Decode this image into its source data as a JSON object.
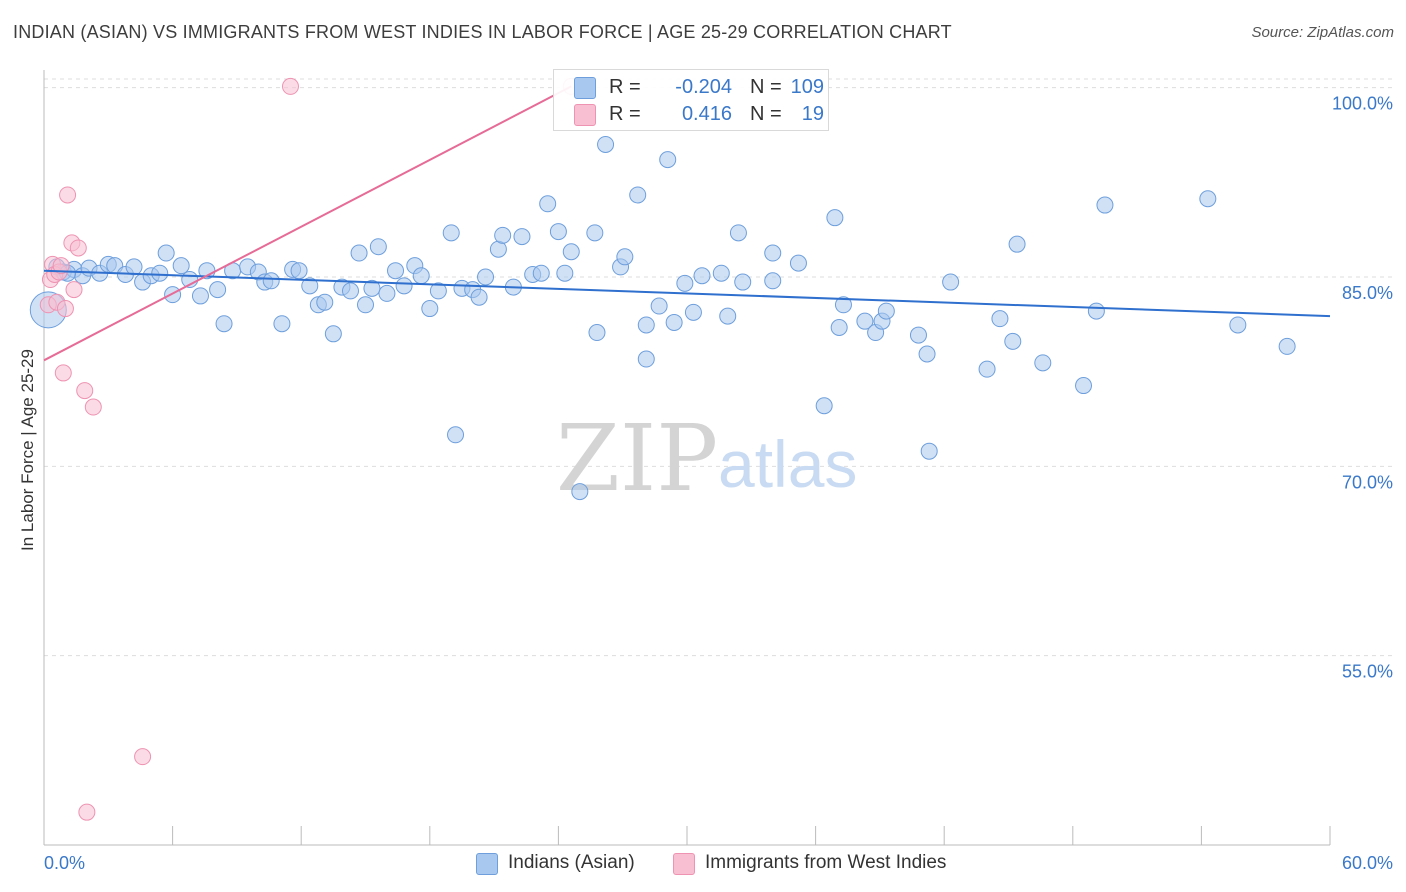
{
  "title": "INDIAN (ASIAN) VS IMMIGRANTS FROM WEST INDIES IN LABOR FORCE | AGE 25-29 CORRELATION CHART",
  "source": "Source: ZipAtlas.com",
  "watermark": {
    "zip": "ZIP",
    "atlas": "atlas"
  },
  "legend": {
    "rows": [
      {
        "r_label": "R =",
        "r_value": "-0.204",
        "n_label": "N =",
        "n_value": "109"
      },
      {
        "r_label": "R =",
        "r_value": "0.416",
        "n_label": "N =",
        "n_value": "19"
      }
    ]
  },
  "bottom_legend": [
    "Indians (Asian)",
    "Immigrants from West Indies"
  ],
  "colors": {
    "blue_fill": "#a9c8ef",
    "blue_stroke": "#6e9fdc",
    "blue_line": "#2f6fce",
    "pink_fill": "#f7bfd1",
    "pink_stroke": "#ee93b2",
    "pink_line": "#e66b96",
    "axis_text": "#3a78c9",
    "grid": "#dddddd"
  },
  "chart_data": {
    "type": "scatter",
    "title": "INDIAN (ASIAN) VS IMMIGRANTS FROM WEST INDIES IN LABOR FORCE | AGE 25-29 CORRELATION CHART",
    "xlabel": "",
    "ylabel": "In Labor Force | Age 25-29",
    "xlim": [
      0,
      60
    ],
    "ylim": [
      40,
      101.4
    ],
    "x_tick_labels": [
      "0.0%",
      "60.0%"
    ],
    "y_ticks": [
      55,
      70,
      85,
      100
    ],
    "y_tick_labels": [
      "55.0%",
      "70.0%",
      "85.0%",
      "100.0%"
    ],
    "grid": "horizontal dashed",
    "series": [
      {
        "name": "Indians (Asian)",
        "color": "#a9c8ef",
        "trend": {
          "x": [
            0,
            60
          ],
          "y": [
            85.5,
            81.9
          ]
        },
        "points": [
          {
            "x": 0.2,
            "y": 82.4,
            "big": true
          },
          {
            "x": 0.6,
            "y": 85.8
          },
          {
            "x": 0.9,
            "y": 85.4
          },
          {
            "x": 1.4,
            "y": 85.6
          },
          {
            "x": 1.8,
            "y": 85.1
          },
          {
            "x": 2.1,
            "y": 85.7
          },
          {
            "x": 2.6,
            "y": 85.3
          },
          {
            "x": 3.0,
            "y": 86.0
          },
          {
            "x": 3.3,
            "y": 85.9
          },
          {
            "x": 3.8,
            "y": 85.2
          },
          {
            "x": 4.2,
            "y": 85.8
          },
          {
            "x": 4.6,
            "y": 84.6
          },
          {
            "x": 5.0,
            "y": 85.1
          },
          {
            "x": 5.4,
            "y": 85.3
          },
          {
            "x": 5.7,
            "y": 86.9
          },
          {
            "x": 6.0,
            "y": 83.6
          },
          {
            "x": 6.4,
            "y": 85.9
          },
          {
            "x": 6.8,
            "y": 84.8
          },
          {
            "x": 7.3,
            "y": 83.5
          },
          {
            "x": 7.6,
            "y": 85.5
          },
          {
            "x": 8.1,
            "y": 84.0
          },
          {
            "x": 8.4,
            "y": 81.3
          },
          {
            "x": 8.8,
            "y": 85.5
          },
          {
            "x": 9.5,
            "y": 85.8
          },
          {
            "x": 10.0,
            "y": 85.4
          },
          {
            "x": 10.3,
            "y": 84.6
          },
          {
            "x": 10.6,
            "y": 84.7
          },
          {
            "x": 11.1,
            "y": 81.3
          },
          {
            "x": 11.6,
            "y": 85.6
          },
          {
            "x": 11.9,
            "y": 85.5
          },
          {
            "x": 12.4,
            "y": 84.3
          },
          {
            "x": 12.8,
            "y": 82.8
          },
          {
            "x": 13.1,
            "y": 83.0
          },
          {
            "x": 13.5,
            "y": 80.5
          },
          {
            "x": 13.9,
            "y": 84.2
          },
          {
            "x": 14.3,
            "y": 83.9
          },
          {
            "x": 14.7,
            "y": 86.9
          },
          {
            "x": 15.0,
            "y": 82.8
          },
          {
            "x": 15.3,
            "y": 84.1
          },
          {
            "x": 15.6,
            "y": 87.4
          },
          {
            "x": 16.0,
            "y": 83.7
          },
          {
            "x": 16.4,
            "y": 85.5
          },
          {
            "x": 16.8,
            "y": 84.3
          },
          {
            "x": 17.3,
            "y": 85.9
          },
          {
            "x": 17.6,
            "y": 85.1
          },
          {
            "x": 18.0,
            "y": 82.5
          },
          {
            "x": 18.4,
            "y": 83.9
          },
          {
            "x": 19.0,
            "y": 88.5
          },
          {
            "x": 19.2,
            "y": 72.5
          },
          {
            "x": 19.5,
            "y": 84.1
          },
          {
            "x": 20.0,
            "y": 84.0
          },
          {
            "x": 20.3,
            "y": 83.4
          },
          {
            "x": 20.6,
            "y": 85.0
          },
          {
            "x": 21.2,
            "y": 87.2
          },
          {
            "x": 21.4,
            "y": 88.3
          },
          {
            "x": 21.9,
            "y": 84.2
          },
          {
            "x": 22.3,
            "y": 88.2
          },
          {
            "x": 22.8,
            "y": 85.2
          },
          {
            "x": 23.2,
            "y": 85.3
          },
          {
            "x": 23.5,
            "y": 90.8
          },
          {
            "x": 24.0,
            "y": 88.6
          },
          {
            "x": 24.3,
            "y": 85.3
          },
          {
            "x": 24.6,
            "y": 87.0
          },
          {
            "x": 25.0,
            "y": 68.0
          },
          {
            "x": 25.7,
            "y": 88.5
          },
          {
            "x": 25.8,
            "y": 80.6
          },
          {
            "x": 26.2,
            "y": 95.5
          },
          {
            "x": 26.9,
            "y": 85.8
          },
          {
            "x": 27.1,
            "y": 86.6
          },
          {
            "x": 27.7,
            "y": 91.5
          },
          {
            "x": 28.1,
            "y": 81.2
          },
          {
            "x": 28.1,
            "y": 78.5
          },
          {
            "x": 28.7,
            "y": 82.7
          },
          {
            "x": 29.1,
            "y": 94.3
          },
          {
            "x": 29.4,
            "y": 81.4
          },
          {
            "x": 29.9,
            "y": 84.5
          },
          {
            "x": 30.3,
            "y": 82.2
          },
          {
            "x": 30.7,
            "y": 85.1
          },
          {
            "x": 31.6,
            "y": 85.3
          },
          {
            "x": 31.9,
            "y": 81.9
          },
          {
            "x": 32.4,
            "y": 88.5
          },
          {
            "x": 32.6,
            "y": 84.6
          },
          {
            "x": 34.0,
            "y": 86.9
          },
          {
            "x": 34.0,
            "y": 84.7
          },
          {
            "x": 35.2,
            "y": 86.1
          },
          {
            "x": 36.4,
            "y": 74.8
          },
          {
            "x": 37.1,
            "y": 81.0
          },
          {
            "x": 37.3,
            "y": 82.8
          },
          {
            "x": 38.3,
            "y": 81.5
          },
          {
            "x": 38.8,
            "y": 80.6
          },
          {
            "x": 39.1,
            "y": 81.5
          },
          {
            "x": 39.3,
            "y": 82.3
          },
          {
            "x": 40.8,
            "y": 80.4
          },
          {
            "x": 41.2,
            "y": 78.9
          },
          {
            "x": 41.3,
            "y": 71.2
          },
          {
            "x": 42.3,
            "y": 84.6
          },
          {
            "x": 44.0,
            "y": 77.7
          },
          {
            "x": 44.6,
            "y": 81.7
          },
          {
            "x": 45.2,
            "y": 79.9
          },
          {
            "x": 45.4,
            "y": 87.6
          },
          {
            "x": 46.6,
            "y": 78.2
          },
          {
            "x": 48.5,
            "y": 76.4
          },
          {
            "x": 49.1,
            "y": 82.3
          },
          {
            "x": 36.9,
            "y": 89.7
          },
          {
            "x": 49.5,
            "y": 90.7
          },
          {
            "x": 54.3,
            "y": 91.2
          },
          {
            "x": 55.7,
            "y": 81.2
          },
          {
            "x": 58.0,
            "y": 79.5
          },
          {
            "x": 1.1,
            "y": 85.3
          }
        ]
      },
      {
        "name": "Immigrants from West Indies",
        "color": "#f7bfd1",
        "trend": {
          "x": [
            0,
            24.6
          ],
          "y": [
            78.4,
            100.1
          ]
        },
        "points": [
          {
            "x": 0.2,
            "y": 82.8
          },
          {
            "x": 0.3,
            "y": 84.8
          },
          {
            "x": 0.4,
            "y": 86.0
          },
          {
            "x": 0.5,
            "y": 85.2
          },
          {
            "x": 0.6,
            "y": 83.0
          },
          {
            "x": 0.7,
            "y": 85.4
          },
          {
            "x": 0.9,
            "y": 77.4
          },
          {
            "x": 1.0,
            "y": 82.5
          },
          {
            "x": 1.1,
            "y": 91.5
          },
          {
            "x": 1.3,
            "y": 87.7
          },
          {
            "x": 1.4,
            "y": 84.0
          },
          {
            "x": 1.6,
            "y": 87.3
          },
          {
            "x": 1.9,
            "y": 76.0
          },
          {
            "x": 2.3,
            "y": 74.7
          },
          {
            "x": 4.6,
            "y": 47.0
          },
          {
            "x": 2.0,
            "y": 42.6
          },
          {
            "x": 11.5,
            "y": 100.1
          },
          {
            "x": 24.6,
            "y": 100.1
          },
          {
            "x": 0.8,
            "y": 85.9
          }
        ]
      }
    ]
  }
}
